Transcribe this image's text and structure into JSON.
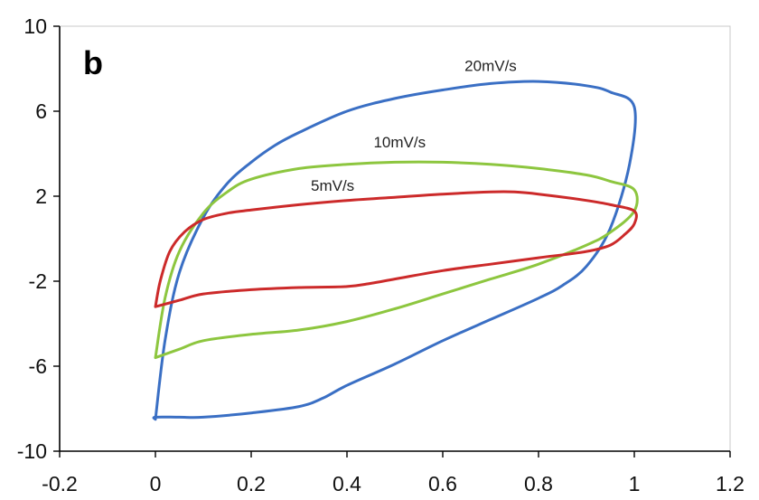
{
  "chart_data": {
    "type": "line",
    "panel_label": "b",
    "title": "",
    "xlabel": "",
    "ylabel": "",
    "xlim": [
      -0.2,
      1.2
    ],
    "ylim": [
      -10,
      10
    ],
    "x_ticks": [
      "-0.2",
      "0",
      "0.2",
      "0.4",
      "0.6",
      "0.8",
      "1",
      "1.2"
    ],
    "y_ticks": [
      "10",
      "6",
      "2",
      "-2",
      "-6",
      "-10"
    ],
    "grid": false,
    "legend": "none",
    "series": [
      {
        "name": "20mV/s",
        "color": "#3a6fc4",
        "label_at": [
          0.7,
          7.9
        ],
        "x": [
          0.0,
          0.02,
          0.05,
          0.1,
          0.15,
          0.2,
          0.25,
          0.3,
          0.4,
          0.5,
          0.6,
          0.7,
          0.8,
          0.9,
          0.95,
          1.0,
          0.99,
          0.95,
          0.9,
          0.85,
          0.8,
          0.7,
          0.6,
          0.5,
          0.4,
          0.35,
          0.3,
          0.2,
          0.1,
          0.05,
          0.0,
          0.0
        ],
        "y": [
          -8.5,
          -4.8,
          -1.6,
          1.0,
          2.6,
          3.6,
          4.4,
          5.0,
          6.0,
          6.6,
          7.0,
          7.3,
          7.4,
          7.2,
          6.9,
          6.2,
          3.5,
          0.5,
          -1.3,
          -2.2,
          -2.8,
          -3.8,
          -4.8,
          -5.9,
          -6.9,
          -7.5,
          -7.9,
          -8.2,
          -8.4,
          -8.4,
          -8.4,
          -8.5
        ]
      },
      {
        "name": "10mV/s",
        "color": "#8dc63f",
        "label_at": [
          0.51,
          4.3
        ],
        "x": [
          0.0,
          0.02,
          0.05,
          0.1,
          0.15,
          0.2,
          0.3,
          0.4,
          0.5,
          0.6,
          0.7,
          0.8,
          0.9,
          0.95,
          1.0,
          1.0,
          0.95,
          0.9,
          0.8,
          0.7,
          0.6,
          0.5,
          0.4,
          0.3,
          0.2,
          0.1,
          0.05,
          0.0
        ],
        "y": [
          -5.6,
          -2.8,
          -0.6,
          1.2,
          2.2,
          2.8,
          3.3,
          3.5,
          3.6,
          3.6,
          3.5,
          3.3,
          3.0,
          2.7,
          2.3,
          1.3,
          0.3,
          -0.3,
          -1.2,
          -1.9,
          -2.6,
          -3.3,
          -3.9,
          -4.3,
          -4.5,
          -4.8,
          -5.2,
          -5.6
        ]
      },
      {
        "name": "5mV/s",
        "color": "#cc2a2a",
        "label_at": [
          0.37,
          2.25
        ],
        "x": [
          0.0,
          0.01,
          0.03,
          0.06,
          0.1,
          0.15,
          0.2,
          0.3,
          0.4,
          0.5,
          0.6,
          0.7,
          0.75,
          0.8,
          0.9,
          0.95,
          1.0,
          1.0,
          0.98,
          0.95,
          0.9,
          0.8,
          0.7,
          0.6,
          0.5,
          0.45,
          0.4,
          0.3,
          0.2,
          0.1,
          0.05,
          0.0
        ],
        "y": [
          -3.2,
          -2.0,
          -0.6,
          0.3,
          0.9,
          1.2,
          1.35,
          1.6,
          1.8,
          1.95,
          2.1,
          2.2,
          2.2,
          2.1,
          1.8,
          1.6,
          1.3,
          0.7,
          0.2,
          -0.3,
          -0.6,
          -0.9,
          -1.2,
          -1.5,
          -1.9,
          -2.1,
          -2.25,
          -2.3,
          -2.4,
          -2.6,
          -2.9,
          -3.2
        ]
      }
    ]
  }
}
